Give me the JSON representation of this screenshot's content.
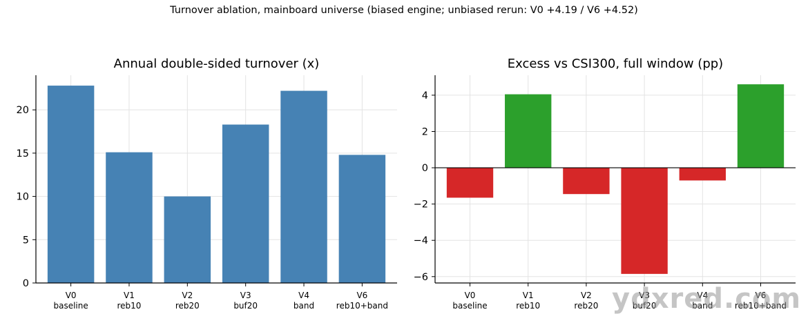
{
  "figure": {
    "suptitle": "Turnover ablation, mainboard universe (biased engine; unbiased rerun: V0 +4.19 / V6 +4.52)",
    "watermark": "ydxred.com"
  },
  "colors": {
    "bar_blue": "#4682b4",
    "bar_green": "#2ca02c",
    "bar_red": "#d62728",
    "grid": "#e3e3e3",
    "axis": "#000000"
  },
  "chart_data": [
    {
      "id": "turnover",
      "type": "bar",
      "title": "Annual double-sided turnover (x)",
      "xlabel": "",
      "ylabel": "",
      "categories": [
        [
          "V0",
          "baseline"
        ],
        [
          "V1",
          "reb10"
        ],
        [
          "V2",
          "reb20"
        ],
        [
          "V3",
          "buf20"
        ],
        [
          "V4",
          "band"
        ],
        [
          "V6",
          "reb10+band"
        ]
      ],
      "values": [
        22.8,
        15.1,
        10.0,
        18.3,
        22.2,
        14.8
      ],
      "ylim": [
        0,
        24
      ],
      "yticks": [
        0,
        5,
        10,
        15,
        20
      ],
      "grid": true,
      "zero_line": false,
      "color_rule": "single",
      "color": "#4682b4"
    },
    {
      "id": "excess",
      "type": "bar",
      "title": "Excess vs CSI300, full window (pp)",
      "xlabel": "",
      "ylabel": "",
      "categories": [
        [
          "V0",
          "baseline"
        ],
        [
          "V1",
          "reb10"
        ],
        [
          "V2",
          "reb20"
        ],
        [
          "V3",
          "buf20"
        ],
        [
          "V4",
          "band"
        ],
        [
          "V6",
          "reb10+band"
        ]
      ],
      "values": [
        -1.65,
        4.05,
        -1.45,
        -5.85,
        -0.7,
        4.6
      ],
      "ylim": [
        -6.35,
        5.1
      ],
      "yticks": [
        -6,
        -4,
        -2,
        0,
        2,
        4
      ],
      "grid": true,
      "zero_line": true,
      "color_rule": "sign",
      "pos_color": "#2ca02c",
      "neg_color": "#d62728"
    }
  ]
}
